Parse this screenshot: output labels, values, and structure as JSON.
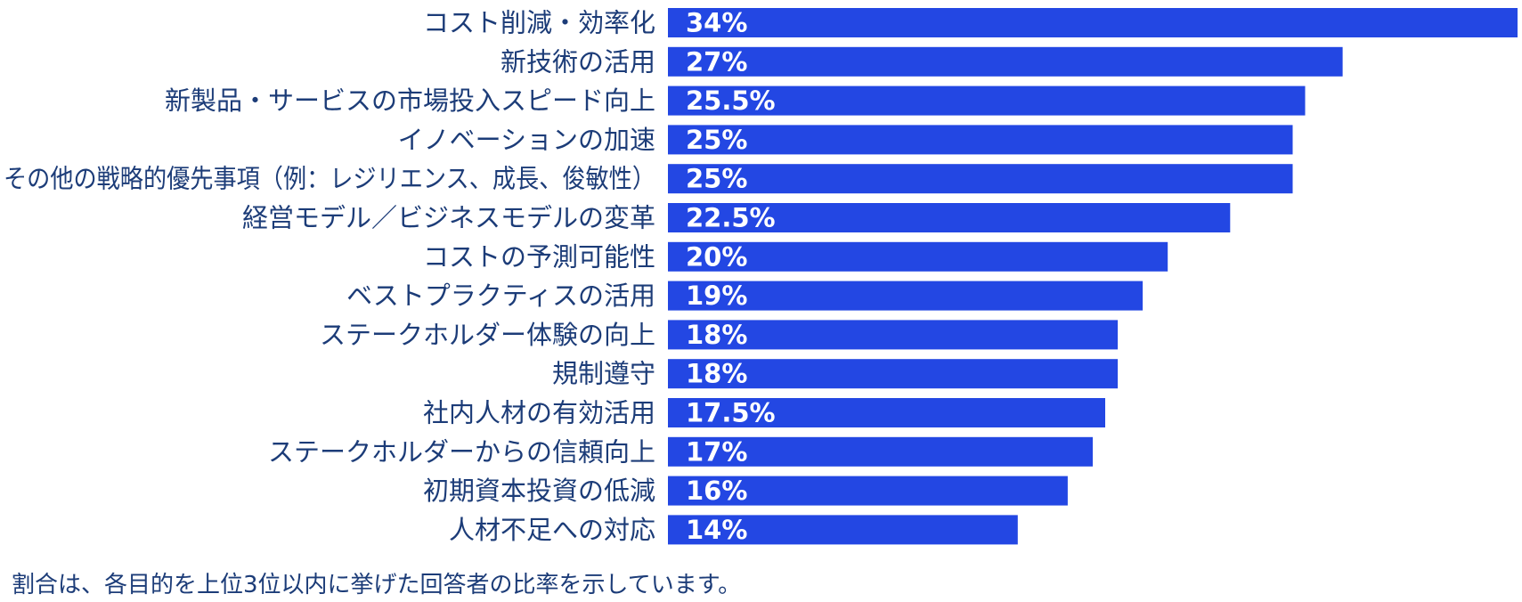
{
  "chart_data": {
    "type": "bar",
    "orientation": "horizontal",
    "categories": [
      "コスト削減・効率化",
      "新技術の活用",
      "新製品・サービスの市場投入スピード向上",
      "イノベーションの加速",
      "その他の戦略的優先事項（例：レジリエンス、成長、俊敏性）",
      "経営モデル／ビジネスモデルの変革",
      "コストの予測可能性",
      "ベストプラクティスの活用",
      "ステークホルダー体験の向上",
      "規制遵守",
      "社内人材の有効活用",
      "ステークホルダーからの信頼向上",
      "初期資本投資の低減",
      "人材不足への対応"
    ],
    "values": [
      34,
      27,
      25.5,
      25,
      25,
      22.5,
      20,
      19,
      18,
      18,
      17.5,
      17,
      16,
      14
    ],
    "value_labels": [
      "34%",
      "27%",
      "25.5%",
      "25%",
      "25%",
      "22.5%",
      "20%",
      "19%",
      "18%",
      "18%",
      "17.5%",
      "17%",
      "16%",
      "14%"
    ],
    "xlim": [
      0,
      34
    ],
    "grid": false,
    "legend": "none",
    "bar_color": "#2347e3",
    "label_color": "#1c3c78",
    "value_label_color": "#ffffff"
  },
  "footnote": "割合は、各目的を上位3位以内に挙げた回答者の比率を示しています。"
}
